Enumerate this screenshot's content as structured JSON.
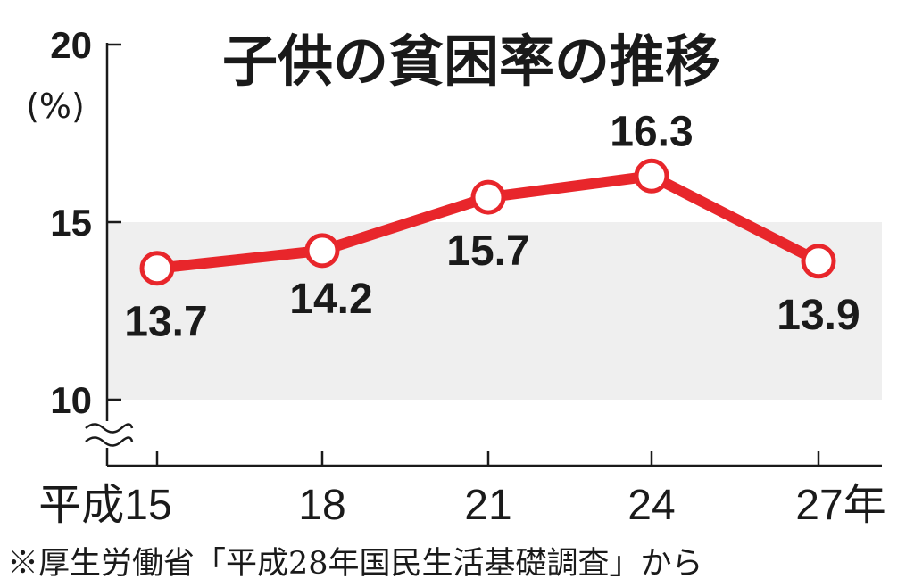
{
  "chart_data": {
    "type": "line",
    "title": "子供の貧困率の推移",
    "yunit": "(%)",
    "ylim": [
      10,
      20
    ],
    "yticks": [
      "10",
      "15",
      "20"
    ],
    "axis_break": true,
    "grid": false,
    "shaded_band": [
      10,
      15
    ],
    "categories": [
      "平成15",
      "18",
      "21",
      "24",
      "27年"
    ],
    "series": [
      {
        "values": [
          13.7,
          14.2,
          15.7,
          16.3,
          13.9
        ],
        "labels": [
          "13.7",
          "14.2",
          "15.7",
          "16.3",
          "13.9"
        ],
        "color": "#e8262b"
      }
    ]
  },
  "source_note": "※厚生労働省「平成28年国民生活基礎調査」から",
  "colors": {
    "line": "#e8262b",
    "band": "#efefef",
    "axis": "#1a1a1a"
  }
}
